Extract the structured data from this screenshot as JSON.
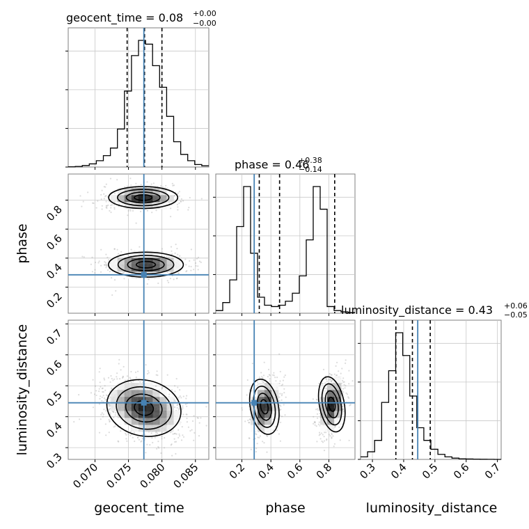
{
  "chart_data": {
    "type": "corner",
    "parameters": [
      "geocent_time",
      "phase",
      "luminosity_distance"
    ],
    "titles": [
      {
        "param": "geocent_time",
        "text": "geocent_time = 0.08",
        "sup": "+0.00",
        "sub": "−0.00"
      },
      {
        "param": "phase",
        "text": "phase = 0.46",
        "sup": "+0.38",
        "sub": "−0.14"
      },
      {
        "param": "luminosity_distance",
        "text": "luminosity_distance = 0.43",
        "sup": "+0.06",
        "sub": "−0.05"
      }
    ],
    "axis_labels": {
      "x": [
        "geocent_time",
        "phase",
        "luminosity_distance"
      ],
      "y": [
        "phase",
        "luminosity_distance"
      ]
    },
    "ranges": {
      "geocent_time": [
        0.066,
        0.087
      ],
      "phase": [
        0.02,
        0.98
      ],
      "luminosity_distance": [
        0.262,
        0.712
      ]
    },
    "ticks": {
      "geocent_time": [
        "0.070",
        "0.075",
        "0.080",
        "0.085"
      ],
      "phase": [
        "0.2",
        "0.4",
        "0.6",
        "0.8"
      ],
      "luminosity_distance": [
        "0.3",
        "0.4",
        "0.5",
        "0.6",
        "0.7"
      ]
    },
    "truths": {
      "geocent_time": 0.0773,
      "phase": 0.285,
      "luminosity_distance": 0.445
    },
    "quantiles": {
      "geocent_time": [
        0.0748,
        0.0774,
        0.08
      ],
      "phase": [
        0.32,
        0.46,
        0.84
      ],
      "luminosity_distance": [
        0.375,
        0.428,
        0.485
      ]
    },
    "histograms": {
      "geocent_time": {
        "edges_start": 0.066,
        "bin_width": 0.00105,
        "counts": [
          0.2,
          0.5,
          1.2,
          2.5,
          5,
          9,
          15,
          30,
          60,
          88,
          100,
          97,
          80,
          63,
          40,
          20,
          10,
          5,
          2,
          1
        ]
      },
      "phase": {
        "edges_start": 0.02,
        "bin_width": 0.048,
        "counts": [
          2,
          8,
          25,
          65,
          95,
          45,
          12,
          6,
          5,
          6,
          9,
          15,
          28,
          55,
          95,
          78,
          5,
          2,
          1,
          0.5
        ]
      },
      "luminosity_distance": {
        "edges_start": 0.262,
        "bin_width": 0.0225,
        "counts": [
          2,
          6,
          15,
          45,
          70,
          100,
          82,
          50,
          25,
          15,
          8,
          4,
          2,
          1,
          0.5,
          0.3,
          0.2,
          0.1,
          0.05,
          0.02
        ]
      }
    }
  }
}
